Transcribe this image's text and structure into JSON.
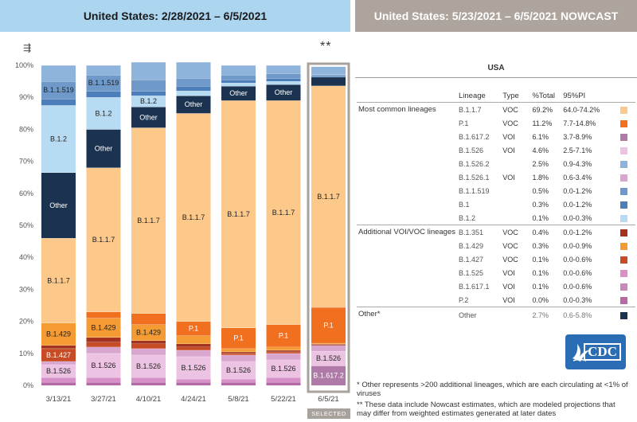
{
  "header_left": "United States: 2/28/2021 – 6/5/2021",
  "header_right": "United States: 5/23/2021 – 6/5/2021 NOWCAST",
  "stars": "**",
  "filter_icon": "filter-icon",
  "selected_label": "SELECTED",
  "table": {
    "region": "USA",
    "headers": [
      "Lineage",
      "Type",
      "%Total",
      "95%PI"
    ],
    "groups": [
      {
        "label": "Most common lineages",
        "rows": [
          {
            "lineage": "B.1.1.7",
            "type": "VOC",
            "pct": "69.2%",
            "pi": "64.0-74.2%",
            "color": "#fdc98a"
          },
          {
            "lineage": "P.1",
            "type": "VOC",
            "pct": "11.2%",
            "pi": "7.7-14.8%",
            "color": "#f07020"
          },
          {
            "lineage": "B.1.617.2",
            "type": "VOI",
            "pct": "6.1%",
            "pi": "3.7-8.9%",
            "color": "#b07aa8"
          },
          {
            "lineage": "B.1.526",
            "type": "VOI",
            "pct": "4.6%",
            "pi": "2.5-7.1%",
            "color": "#ecc3e2"
          },
          {
            "lineage": "B.1.526.2",
            "type": "",
            "pct": "2.5%",
            "pi": "0.9-4.3%",
            "color": "#8fb4db"
          },
          {
            "lineage": "B.1.526.1",
            "type": "VOI",
            "pct": "1.8%",
            "pi": "0.6-3.4%",
            "color": "#d9a6cf"
          },
          {
            "lineage": "B.1.1.519",
            "type": "",
            "pct": "0.5%",
            "pi": "0.0-1.2%",
            "color": "#6f99c8"
          },
          {
            "lineage": "B.1",
            "type": "",
            "pct": "0.3%",
            "pi": "0.0-1.2%",
            "color": "#4c7fba"
          },
          {
            "lineage": "B.1.2",
            "type": "",
            "pct": "0.1%",
            "pi": "0.0-0.3%",
            "color": "#b7dbf2"
          }
        ]
      },
      {
        "label": "Additional VOI/VOC lineages",
        "rows": [
          {
            "lineage": "B.1.351",
            "type": "VOC",
            "pct": "0.4%",
            "pi": "0.0-1.2%",
            "color": "#a3331e"
          },
          {
            "lineage": "B.1.429",
            "type": "VOC",
            "pct": "0.3%",
            "pi": "0.0-0.9%",
            "color": "#f59b34"
          },
          {
            "lineage": "B.1.427",
            "type": "VOC",
            "pct": "0.1%",
            "pi": "0.0-0.6%",
            "color": "#c74b24"
          },
          {
            "lineage": "B.1.525",
            "type": "VOI",
            "pct": "0.1%",
            "pi": "0.0-0.6%",
            "color": "#d890c8"
          },
          {
            "lineage": "B.1.617.1",
            "type": "VOI",
            "pct": "0.1%",
            "pi": "0.0-0.6%",
            "color": "#c987be"
          },
          {
            "lineage": "P.2",
            "type": "VOI",
            "pct": "0.0%",
            "pi": "0.0-0.3%",
            "color": "#b56aa6"
          }
        ]
      },
      {
        "label": "Other*",
        "rows": [
          {
            "lineage": "Other",
            "type": "",
            "pct": "2.7%",
            "pi": "0.6-5.8%",
            "color": "#1b3350"
          }
        ]
      }
    ]
  },
  "footnote_1": "*     Other represents >200 additional lineages, which are each circulating at <1% of viruses",
  "footnote_2": "**      These data include Nowcast estimates, which are modeled projections that may differ from weighted estimates generated at later dates",
  "logo_text": "CDC",
  "chart_data": {
    "type": "bar",
    "stacked": true,
    "ylim": [
      0,
      100
    ],
    "ytick_labels": [
      "0%",
      "10%",
      "20%",
      "30%",
      "40%",
      "50%",
      "60%",
      "70%",
      "80%",
      "90%",
      "100%"
    ],
    "categories": [
      "3/13/21",
      "3/27/21",
      "4/10/21",
      "4/24/21",
      "5/8/21",
      "5/22/21",
      "6/5/21"
    ],
    "selected_category": "6/5/21",
    "segments": [
      [
        {
          "label": "",
          "value": 1,
          "color": "#b56aa6"
        },
        {
          "label": "",
          "value": 1.5,
          "color": "#d890c8"
        },
        {
          "label": "B.1.526",
          "value": 4,
          "color": "#ecc3e2"
        },
        {
          "label": "",
          "value": 1,
          "color": "#d9a6cf"
        },
        {
          "label": "B.1.427",
          "value": 4,
          "color": "#c74b24"
        },
        {
          "label": "",
          "value": 1,
          "color": "#a3331e"
        },
        {
          "label": "B.1.429",
          "value": 7,
          "color": "#f59b34"
        },
        {
          "label": "B.1.1.7",
          "value": 26.5,
          "color": "#fdc98a"
        },
        {
          "label": "Other",
          "value": 20.5,
          "color": "#1b3350"
        },
        {
          "label": "B.1.2",
          "value": 21,
          "color": "#b7dbf2"
        },
        {
          "label": "",
          "value": 2,
          "color": "#4c7fba"
        },
        {
          "label": "B.1.1.519",
          "value": 5.5,
          "color": "#6f99c8"
        },
        {
          "label": "",
          "value": 5,
          "color": "#8fb4db"
        }
      ],
      [
        {
          "label": "",
          "value": 1,
          "color": "#b56aa6"
        },
        {
          "label": "",
          "value": 1.5,
          "color": "#d890c8"
        },
        {
          "label": "B.1.526",
          "value": 7.5,
          "color": "#ecc3e2"
        },
        {
          "label": "",
          "value": 2,
          "color": "#d9a6cf"
        },
        {
          "label": "",
          "value": 1.5,
          "color": "#c74b24"
        },
        {
          "label": "",
          "value": 1.5,
          "color": "#a3331e"
        },
        {
          "label": "B.1.429",
          "value": 6,
          "color": "#f59b34"
        },
        {
          "label": "",
          "value": 2,
          "color": "#f07020"
        },
        {
          "label": "B.1.1.7",
          "value": 45,
          "color": "#fdc98a"
        },
        {
          "label": "Other",
          "value": 12,
          "color": "#1b3350"
        },
        {
          "label": "B.1.2",
          "value": 10,
          "color": "#b7dbf2"
        },
        {
          "label": "",
          "value": 2,
          "color": "#4c7fba"
        },
        {
          "label": "B.1.1.519",
          "value": 5,
          "color": "#6f99c8"
        },
        {
          "label": "",
          "value": 3,
          "color": "#8fb4db"
        }
      ],
      [
        {
          "label": "",
          "value": 1,
          "color": "#b56aa6"
        },
        {
          "label": "",
          "value": 1.5,
          "color": "#d890c8"
        },
        {
          "label": "B.1.526",
          "value": 7,
          "color": "#ecc3e2"
        },
        {
          "label": "",
          "value": 2,
          "color": "#d9a6cf"
        },
        {
          "label": "",
          "value": 1.5,
          "color": "#c74b24"
        },
        {
          "label": "",
          "value": 1,
          "color": "#a3331e"
        },
        {
          "label": "B.1.429",
          "value": 5,
          "color": "#f59b34"
        },
        {
          "label": "",
          "value": 3.5,
          "color": "#f07020"
        },
        {
          "label": "B.1.1.7",
          "value": 58,
          "color": "#fdc98a"
        },
        {
          "label": "Other",
          "value": 6.5,
          "color": "#1b3350"
        },
        {
          "label": "B.1.2",
          "value": 3.5,
          "color": "#b7dbf2"
        },
        {
          "label": "",
          "value": 1.5,
          "color": "#4c7fba"
        },
        {
          "label": "",
          "value": 3.5,
          "color": "#6f99c8"
        },
        {
          "label": "",
          "value": 5.5,
          "color": "#8fb4db"
        }
      ],
      [
        {
          "label": "",
          "value": 1,
          "color": "#b56aa6"
        },
        {
          "label": "",
          "value": 1,
          "color": "#d890c8"
        },
        {
          "label": "B.1.526",
          "value": 7,
          "color": "#ecc3e2"
        },
        {
          "label": "",
          "value": 2,
          "color": "#d9a6cf"
        },
        {
          "label": "",
          "value": 1,
          "color": "#c74b24"
        },
        {
          "label": "",
          "value": 1,
          "color": "#a3331e"
        },
        {
          "label": "",
          "value": 2.5,
          "color": "#f59b34"
        },
        {
          "label": "P.1",
          "value": 4.5,
          "color": "#f07020"
        },
        {
          "label": "B.1.1.7",
          "value": 65,
          "color": "#fdc98a"
        },
        {
          "label": "Other",
          "value": 5.5,
          "color": "#1b3350"
        },
        {
          "label": "",
          "value": 1.5,
          "color": "#b7dbf2"
        },
        {
          "label": "",
          "value": 1.5,
          "color": "#4c7fba"
        },
        {
          "label": "",
          "value": 2.5,
          "color": "#6f99c8"
        },
        {
          "label": "",
          "value": 5,
          "color": "#8fb4db"
        }
      ],
      [
        {
          "label": "",
          "value": 1,
          "color": "#b56aa6"
        },
        {
          "label": "",
          "value": 1,
          "color": "#d890c8"
        },
        {
          "label": "B.1.526",
          "value": 5.5,
          "color": "#ecc3e2"
        },
        {
          "label": "",
          "value": 2,
          "color": "#d9a6cf"
        },
        {
          "label": "",
          "value": 0.5,
          "color": "#c74b24"
        },
        {
          "label": "",
          "value": 0.5,
          "color": "#a3331e"
        },
        {
          "label": "",
          "value": 1,
          "color": "#f59b34"
        },
        {
          "label": "P.1",
          "value": 6.5,
          "color": "#f07020"
        },
        {
          "label": "B.1.1.7",
          "value": 71,
          "color": "#fdc98a"
        },
        {
          "label": "Other",
          "value": 4.5,
          "color": "#1b3350"
        },
        {
          "label": "",
          "value": 1,
          "color": "#b7dbf2"
        },
        {
          "label": "",
          "value": 1,
          "color": "#4c7fba"
        },
        {
          "label": "",
          "value": 1.5,
          "color": "#6f99c8"
        },
        {
          "label": "",
          "value": 3,
          "color": "#8fb4db"
        }
      ],
      [
        {
          "label": "",
          "value": 1,
          "color": "#b56aa6"
        },
        {
          "label": "",
          "value": 1.5,
          "color": "#d890c8"
        },
        {
          "label": "B.1.526",
          "value": 5.5,
          "color": "#ecc3e2"
        },
        {
          "label": "",
          "value": 2,
          "color": "#d9a6cf"
        },
        {
          "label": "",
          "value": 0.5,
          "color": "#c74b24"
        },
        {
          "label": "",
          "value": 0.5,
          "color": "#a3331e"
        },
        {
          "label": "",
          "value": 1,
          "color": "#f59b34"
        },
        {
          "label": "P.1",
          "value": 7,
          "color": "#f07020"
        },
        {
          "label": "B.1.1.7",
          "value": 70,
          "color": "#fdc98a"
        },
        {
          "label": "Other",
          "value": 5,
          "color": "#1b3350"
        },
        {
          "label": "",
          "value": 1,
          "color": "#b7dbf2"
        },
        {
          "label": "",
          "value": 1,
          "color": "#4c7fba"
        },
        {
          "label": "",
          "value": 1.5,
          "color": "#6f99c8"
        },
        {
          "label": "",
          "value": 2.5,
          "color": "#8fb4db"
        }
      ],
      [
        {
          "label": "B.1.617.2",
          "value": 6.1,
          "color": "#b07aa8"
        },
        {
          "label": "B.1.526",
          "value": 4.6,
          "color": "#ecc3e2"
        },
        {
          "label": "",
          "value": 1.8,
          "color": "#d9a6cf"
        },
        {
          "label": "",
          "value": 0.4,
          "color": "#a3331e"
        },
        {
          "label": "",
          "value": 0.3,
          "color": "#f59b34"
        },
        {
          "label": "P.1",
          "value": 11.2,
          "color": "#f07020"
        },
        {
          "label": "B.1.1.7",
          "value": 69.2,
          "color": "#fdc98a"
        },
        {
          "label": "",
          "value": 2.7,
          "color": "#1b3350"
        },
        {
          "label": "",
          "value": 0.3,
          "color": "#4c7fba"
        },
        {
          "label": "",
          "value": 0.5,
          "color": "#6f99c8"
        },
        {
          "label": "",
          "value": 2.5,
          "color": "#8fb4db"
        }
      ]
    ]
  }
}
